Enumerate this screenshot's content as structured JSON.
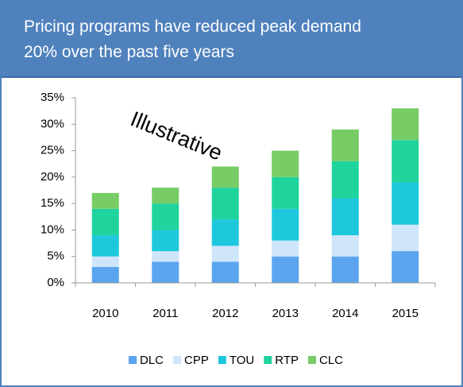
{
  "chart_data": {
    "type": "bar",
    "stacked": true,
    "title": [
      "Pricing programs have reduced peak demand",
      "20% over the past five years"
    ],
    "annotation": "Illustrative",
    "annotation_color": "#ff0000",
    "categories": [
      "2010",
      "2011",
      "2012",
      "2013",
      "2014",
      "2015"
    ],
    "series": [
      {
        "name": "DLC",
        "color": "#5aa5ee",
        "values": [
          3,
          4,
          4,
          5,
          5,
          6
        ]
      },
      {
        "name": "CPP",
        "color": "#cfe5fb",
        "values": [
          2,
          2,
          3,
          3,
          4,
          5
        ]
      },
      {
        "name": "TOU",
        "color": "#1ec8dc",
        "values": [
          4,
          4,
          5,
          6,
          7,
          8
        ]
      },
      {
        "name": "RTP",
        "color": "#1fd49c",
        "values": [
          5,
          5,
          6,
          6,
          7,
          8
        ]
      },
      {
        "name": "CLC",
        "color": "#77cc66",
        "values": [
          3,
          3,
          4,
          5,
          6,
          6
        ]
      }
    ],
    "ylim": [
      0,
      35
    ],
    "yticks": [
      {
        "value": 0,
        "label": "0%"
      },
      {
        "value": 5,
        "label": "5%"
      },
      {
        "value": 10,
        "label": "10%"
      },
      {
        "value": 15,
        "label": "15%"
      },
      {
        "value": 20,
        "label": "20%"
      },
      {
        "value": 25,
        "label": "25%"
      },
      {
        "value": 30,
        "label": "30%"
      },
      {
        "value": 35,
        "label": "35%"
      }
    ],
    "legend": "bottom"
  }
}
